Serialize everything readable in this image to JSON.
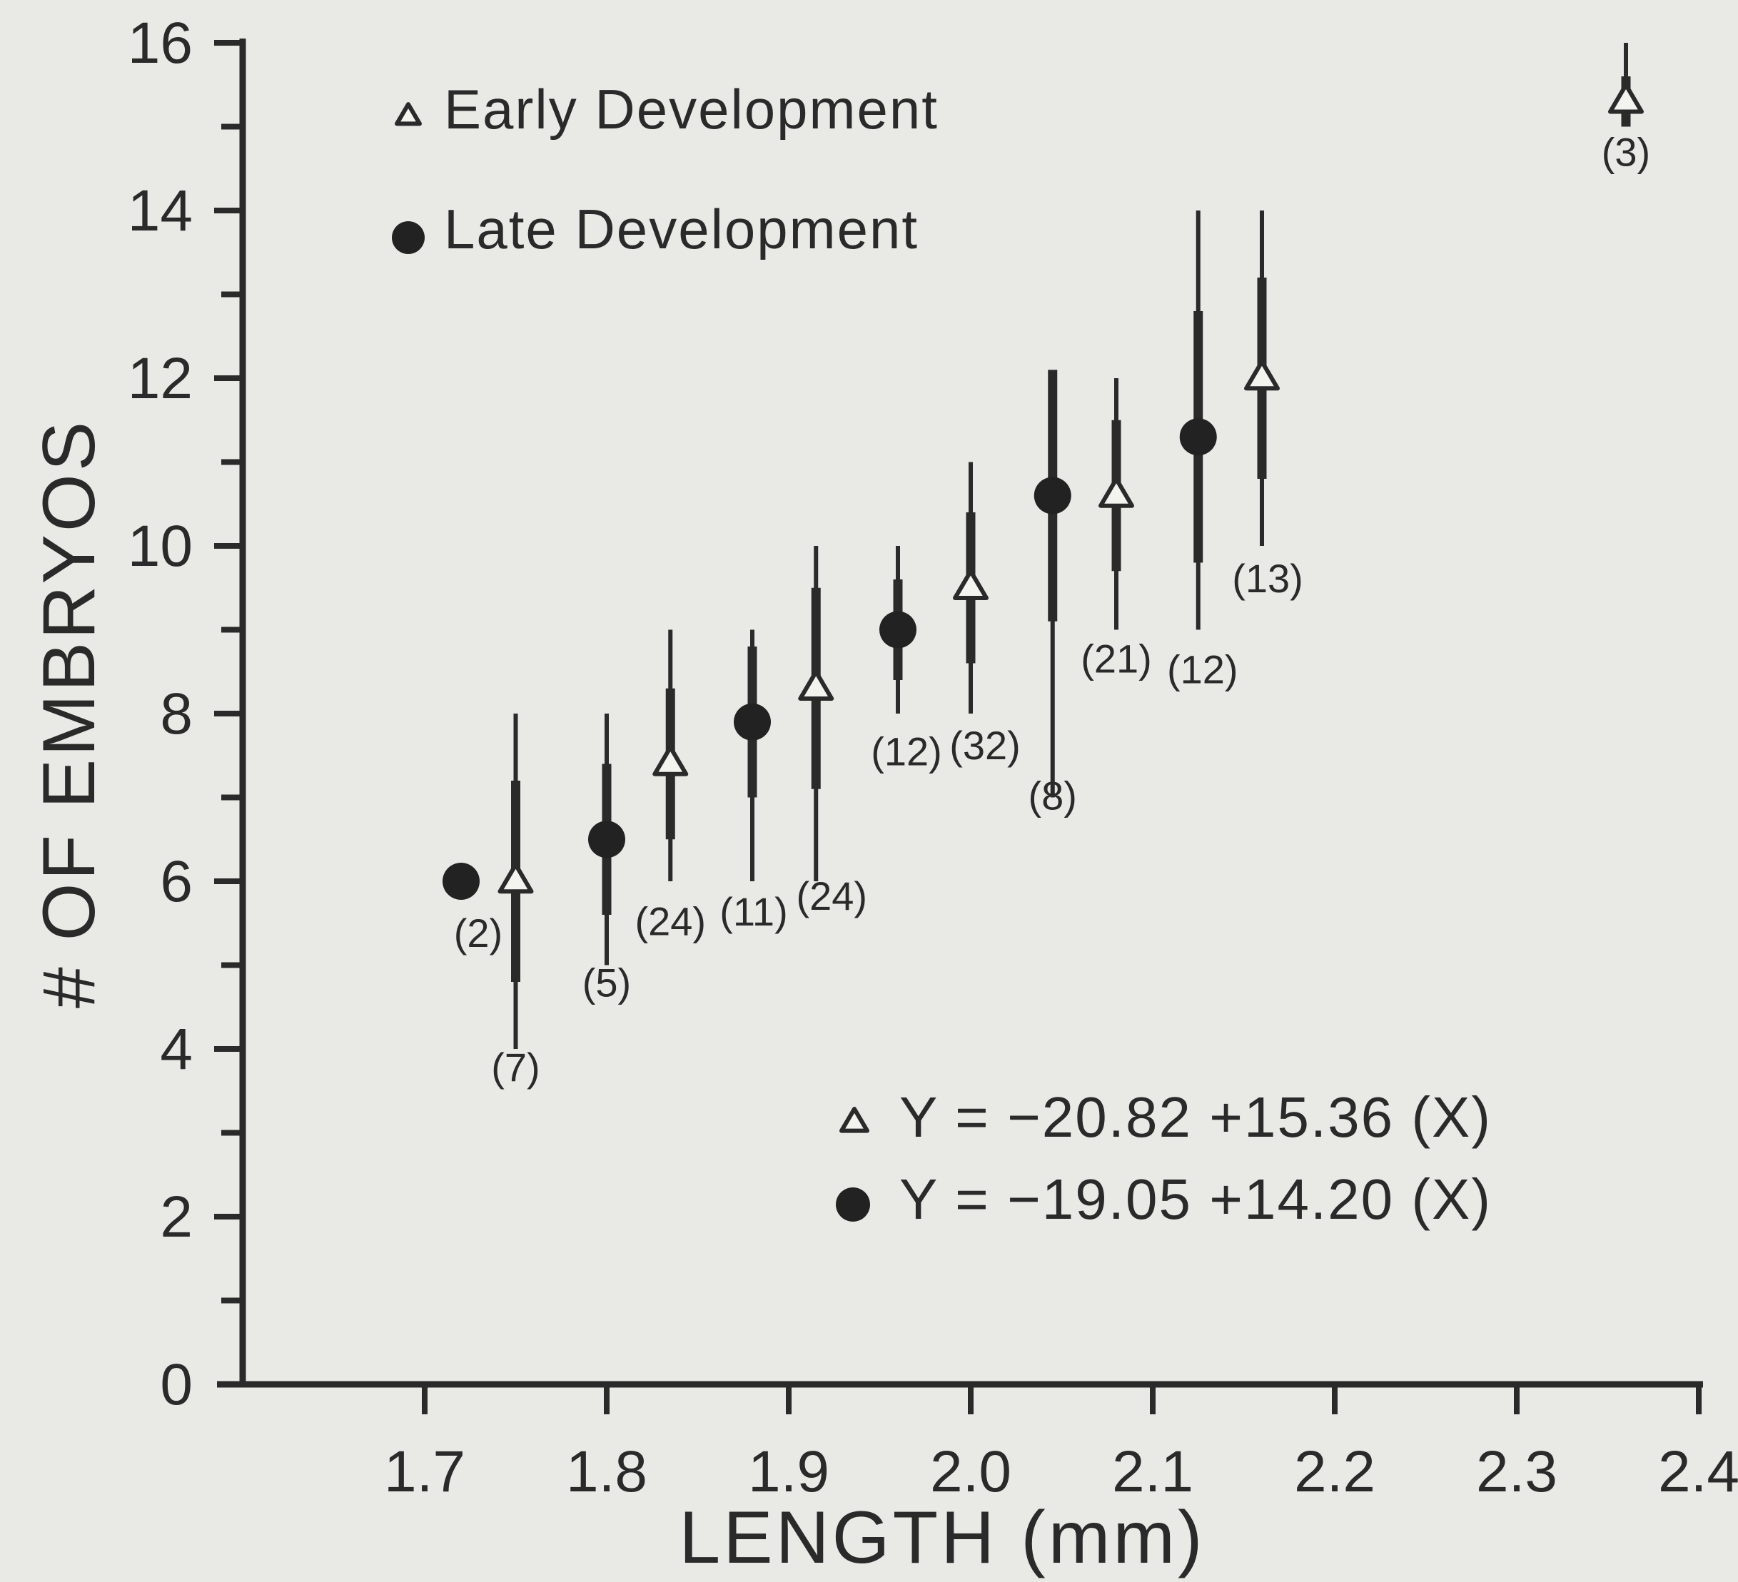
{
  "chart_data": {
    "type": "scatter",
    "xlabel": "LENGTH (mm)",
    "ylabel": "# OF EMBRYOS",
    "xlim": [
      1.6,
      2.4
    ],
    "ylim": [
      0,
      16
    ],
    "x_ticks": [
      "1.7",
      "1.8",
      "1.9",
      "2.0",
      "2.1",
      "2.2",
      "2.3",
      "2.4"
    ],
    "y_ticks": [
      "0",
      "2",
      "4",
      "6",
      "8",
      "10",
      "12",
      "14",
      "16"
    ],
    "legend": [
      {
        "marker": "triangle",
        "label": "Early Development"
      },
      {
        "marker": "circle",
        "label": "Late Development"
      }
    ],
    "equations": [
      {
        "marker": "triangle",
        "text": "Y = −20.82 +15.36 (X)"
      },
      {
        "marker": "circle",
        "text": "Y = −19.05 +14.20 (X)"
      }
    ],
    "series": [
      {
        "name": "Early Development",
        "marker": "triangle",
        "points": [
          {
            "x": 1.75,
            "y": 6.0,
            "err_low": 4.0,
            "err_high": 8.0,
            "n": "(7)"
          },
          {
            "x": 1.835,
            "y": 7.4,
            "err_low": 6.0,
            "err_high": 9.0,
            "n": "(24)"
          },
          {
            "x": 1.915,
            "y": 8.3,
            "err_low": 6.0,
            "err_high": 10.0,
            "n": "(24)"
          },
          {
            "x": 2.0,
            "y": 9.5,
            "err_low": 8.0,
            "err_high": 11.0,
            "n": "(32)"
          },
          {
            "x": 2.08,
            "y": 10.6,
            "err_low": 9.0,
            "err_high": 12.0,
            "n": "(21)"
          },
          {
            "x": 2.16,
            "y": 12.0,
            "err_low": 10.0,
            "err_high": 14.0,
            "n": "(13)"
          },
          {
            "x": 2.36,
            "y": 15.3,
            "err_low": 15.0,
            "err_high": 16.0,
            "n": "(3)"
          }
        ]
      },
      {
        "name": "Late Development",
        "marker": "circle",
        "points": [
          {
            "x": 1.72,
            "y": 6.0,
            "err_low": null,
            "err_high": null,
            "n": "(2)"
          },
          {
            "x": 1.8,
            "y": 6.5,
            "err_low": 5.0,
            "err_high": 8.0,
            "n": "(5)"
          },
          {
            "x": 1.88,
            "y": 7.9,
            "err_low": 6.0,
            "err_high": 9.0,
            "n": "(11)"
          },
          {
            "x": 1.96,
            "y": 9.0,
            "err_low": 8.0,
            "err_high": 10.0,
            "n": "(12)"
          },
          {
            "x": 2.045,
            "y": 10.6,
            "err_low": 7.0,
            "err_high": 12.0,
            "n": "(8)"
          },
          {
            "x": 2.125,
            "y": 11.3,
            "err_low": 9.0,
            "err_high": 14.0,
            "n": "(12)"
          }
        ]
      }
    ]
  }
}
